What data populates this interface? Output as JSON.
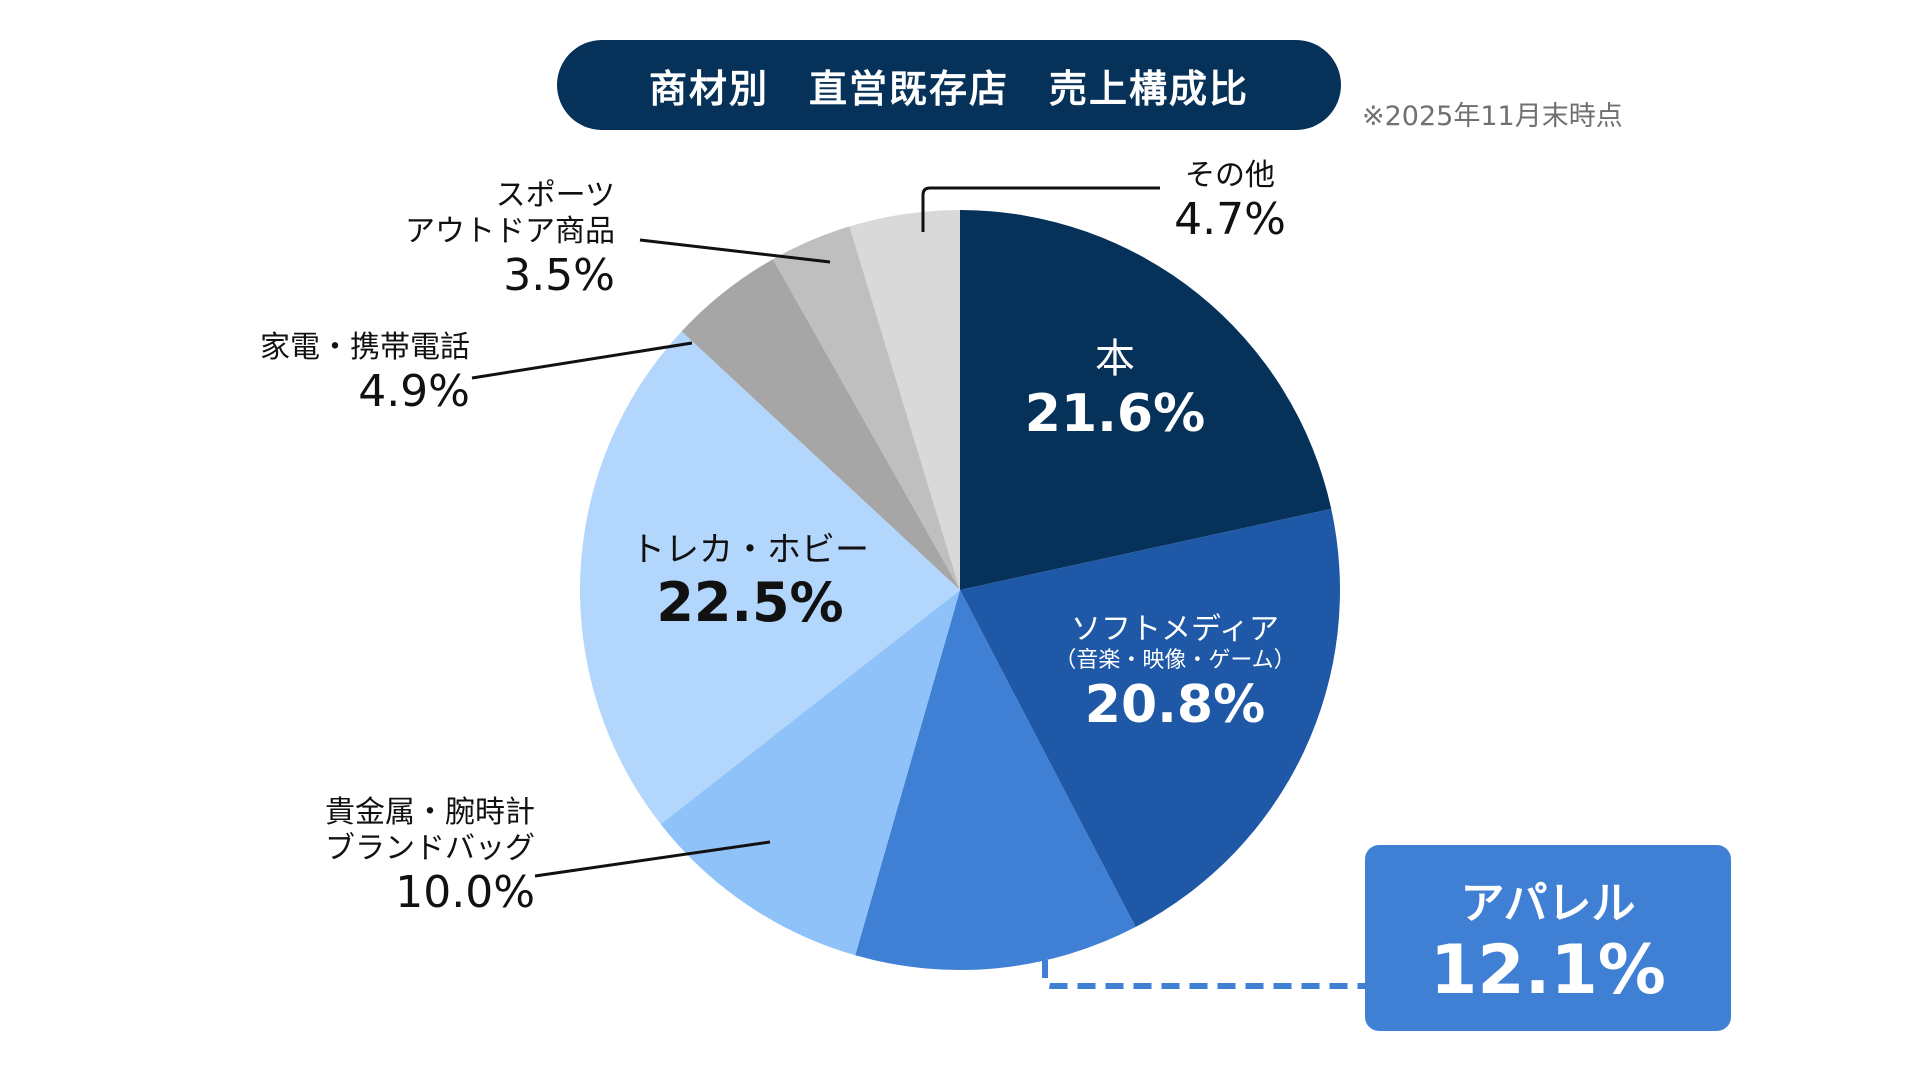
{
  "title": "商材別　直営既存店　売上構成比",
  "note": "※2025年11月末時点",
  "chart_data": {
    "type": "pie",
    "title": "商材別　直営既存店　売上構成比",
    "slices": [
      {
        "name": "本",
        "value": 21.6,
        "label": "21.6%",
        "color": "#06325a"
      },
      {
        "name": "ソフトメディア",
        "sub": "（音楽・映像・ゲーム）",
        "value": 20.8,
        "label": "20.8%",
        "color": "#1f58a6"
      },
      {
        "name": "アパレル",
        "value": 12.1,
        "label": "12.1%",
        "color": "#3f80d4"
      },
      {
        "name": "貴金属・腕時計",
        "name2": "ブランドバッグ",
        "value": 10.0,
        "label": "10.0%",
        "color": "#8fc2f8"
      },
      {
        "name": "トレカ・ホビー",
        "value": 22.5,
        "label": "22.5%",
        "color": "#b3d7fc"
      },
      {
        "name": "家電・携帯電話",
        "value": 4.9,
        "label": "4.9%",
        "color": "#a6a6a6"
      },
      {
        "name": "スポーツ",
        "name2": "アウトドア商品",
        "value": 3.5,
        "label": "3.5%",
        "color": "#bfbfbf"
      },
      {
        "name": "その他",
        "value": 4.7,
        "label": "4.7%",
        "color": "#d9d9d9"
      }
    ]
  }
}
